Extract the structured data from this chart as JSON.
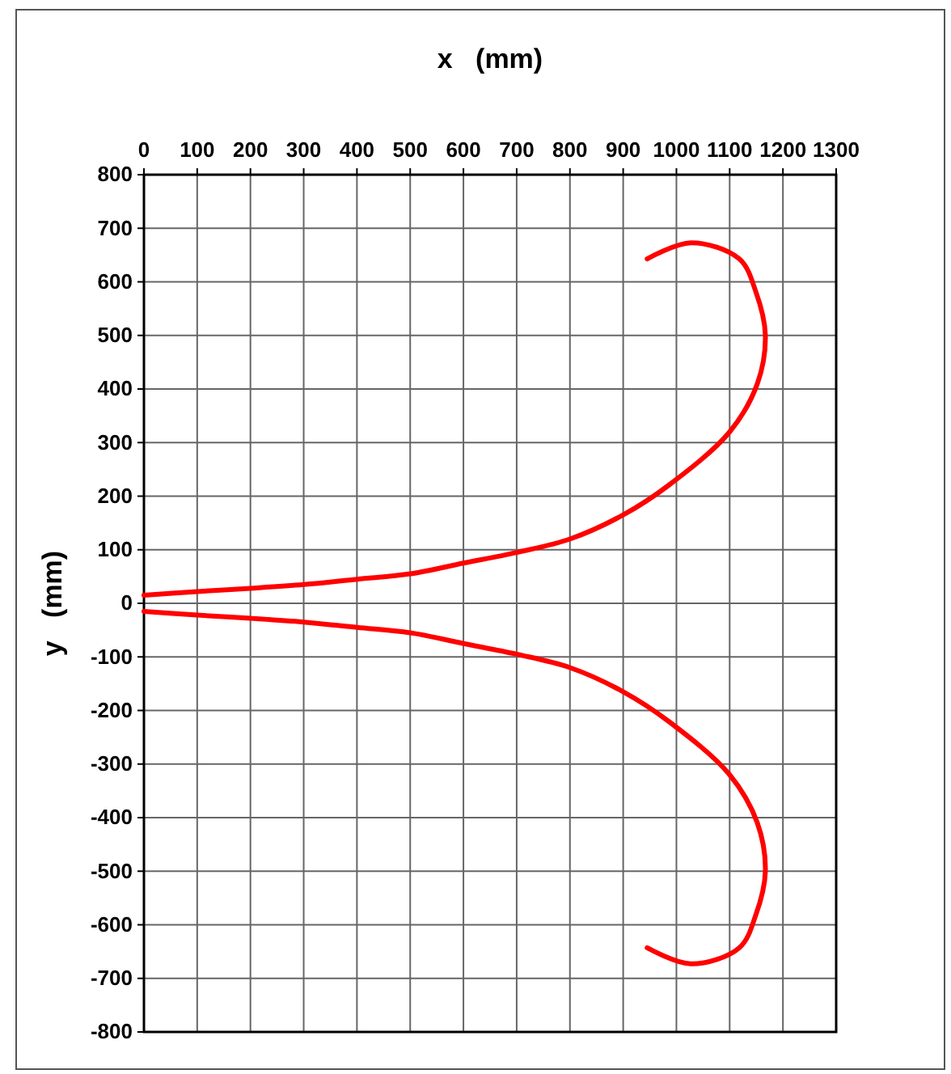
{
  "chart_data": {
    "type": "line",
    "xlabel": "x   (mm)",
    "ylabel": "y   (mm)",
    "series": [
      {
        "color": "#ff0000",
        "x": [
          0,
          100,
          200,
          300,
          400,
          500,
          600,
          700,
          800,
          900,
          985,
          1100,
          1152,
          1167,
          1149,
          1118,
          1027,
          945
        ],
        "values": [
          15,
          22,
          28,
          35,
          45,
          55,
          75,
          95,
          120,
          165,
          220,
          320,
          410,
          501,
          582,
          643,
          673,
          643
        ]
      },
      {
        "color": "#ff0000",
        "x": [
          0,
          100,
          200,
          300,
          400,
          500,
          600,
          700,
          800,
          900,
          985,
          1100,
          1152,
          1167,
          1149,
          1118,
          1027,
          945
        ],
        "values": [
          -15,
          -22,
          -28,
          -35,
          -45,
          -55,
          -75,
          -95,
          -120,
          -165,
          -220,
          -320,
          -410,
          -501,
          -582,
          -643,
          -673,
          -643
        ]
      }
    ],
    "xlim": [
      0,
      1300
    ],
    "xticks": [
      0,
      100,
      200,
      300,
      400,
      500,
      600,
      700,
      800,
      900,
      1000,
      1100,
      1200,
      1300
    ],
    "ylim": [
      -800,
      800
    ],
    "yticks": [
      -800,
      -700,
      -600,
      -500,
      -400,
      -300,
      -200,
      -100,
      0,
      100,
      200,
      300,
      400,
      500,
      600,
      700,
      800
    ],
    "grid": true,
    "marker": "none",
    "line_style": "solid"
  }
}
